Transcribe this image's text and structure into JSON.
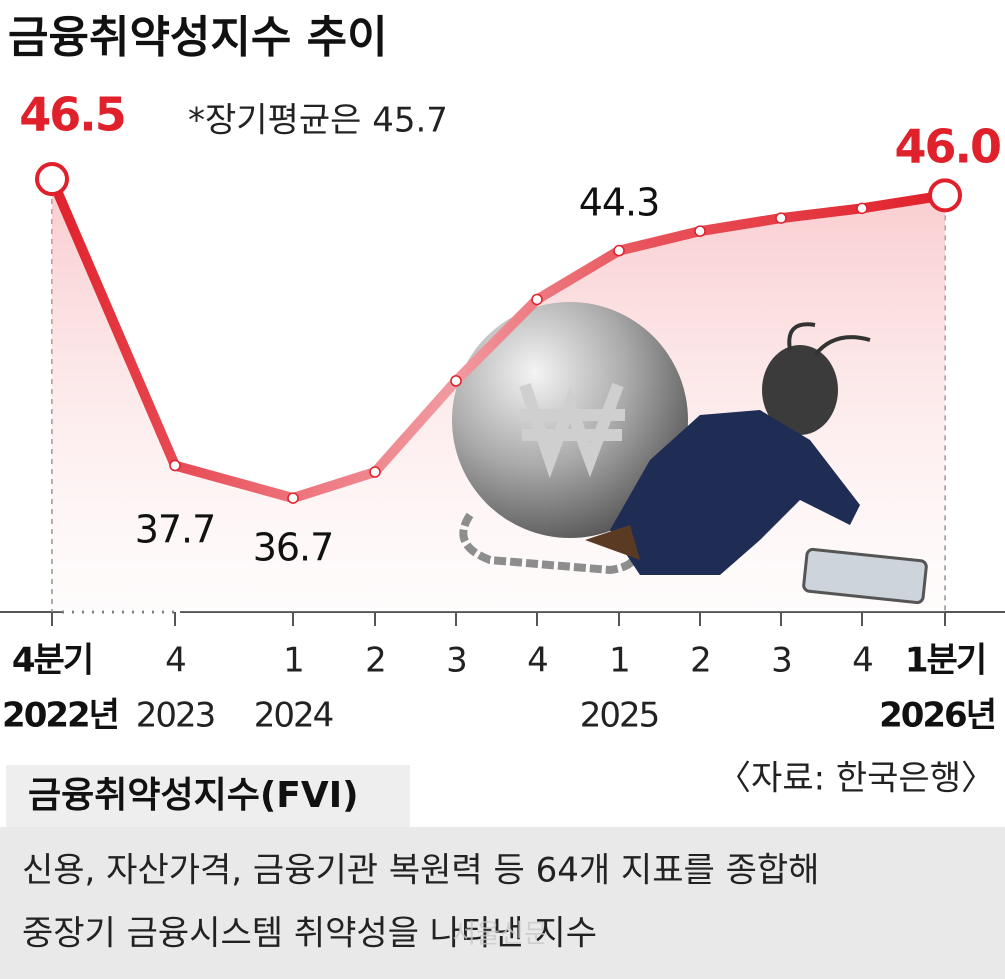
{
  "chart_data": {
    "type": "line",
    "title": "금융취약성지수 추이",
    "annotation": "*장기평균은 45.7",
    "categories": [
      "4분기",
      "4",
      "1",
      "2",
      "3",
      "4",
      "1",
      "2",
      "3",
      "4",
      "1분기"
    ],
    "category_years": [
      "2022년",
      "2023",
      "2024",
      null,
      null,
      null,
      "2025",
      null,
      null,
      null,
      "2026년"
    ],
    "series": [
      {
        "name": "금융취약성지수",
        "color": "#e0202a",
        "values": [
          46.5,
          37.7,
          36.7,
          37.5,
          40.3,
          42.8,
          44.3,
          44.9,
          45.3,
          45.6,
          46.0
        ],
        "value_labels": [
          "46.5",
          "37.7",
          "36.7",
          null,
          null,
          null,
          "44.3",
          null,
          null,
          null,
          "46.0"
        ]
      }
    ],
    "ylim": [
      33.2,
      52
    ],
    "source": "〈자료: 한국은행〉",
    "box": {
      "title": "금융취약성지수(FVI)",
      "lines": [
        "신용, 자산가격, 금융기관 복원력 등 64개 지표를 종합해",
        "중장기 금융시스템 취약성을 나타낸 지수"
      ]
    },
    "watermark": "서울신문"
  }
}
